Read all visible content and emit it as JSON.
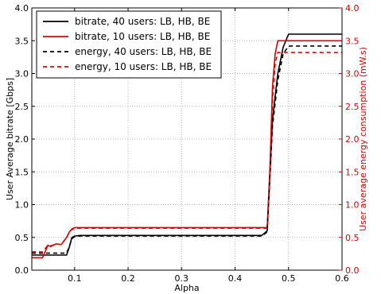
{
  "chart_data": {
    "type": "line",
    "xlabel": "Alpha",
    "ylabel_left": "User Average bitrate [Gbps]",
    "ylabel_right": "User average energy consumption (mW.s)",
    "xlim": [
      0.02,
      0.6
    ],
    "ylim_left": [
      0.0,
      4.0
    ],
    "ylim_right": [
      0.0,
      4.0
    ],
    "x_ticks": [
      "0.1",
      "0.2",
      "0.3",
      "0.4",
      "0.5",
      "0.6"
    ],
    "x_tick_values": [
      0.1,
      0.2,
      0.3,
      0.4,
      0.5,
      0.6
    ],
    "y_ticks_left": [
      "0.0",
      "0.5",
      "1.0",
      "1.5",
      "2.0",
      "2.5",
      "3.0",
      "3.5",
      "4.0"
    ],
    "y_ticks_right": [
      "0.0",
      "0.5",
      "1.0",
      "1.5",
      "2.0",
      "2.5",
      "3.0",
      "3.5",
      "4.0"
    ],
    "y_tick_values": [
      0.0,
      0.5,
      1.0,
      1.5,
      2.0,
      2.5,
      3.0,
      3.5,
      4.0
    ],
    "grid": true,
    "legend_position": "top-left",
    "colors": {
      "black": "#000000",
      "red": "#e00000",
      "grid": "#b0b0b0"
    },
    "series": [
      {
        "name": "bitrate, 40 users: LB, HB, BE",
        "color": "#000000",
        "dash": "solid",
        "axis": "left",
        "x": [
          0.02,
          0.085,
          0.09,
          0.095,
          0.1,
          0.11,
          0.45,
          0.46,
          0.47,
          0.48,
          0.49,
          0.5,
          0.6
        ],
        "y": [
          0.23,
          0.23,
          0.35,
          0.5,
          0.52,
          0.53,
          0.53,
          0.6,
          2.3,
          3.0,
          3.4,
          3.6,
          3.6
        ]
      },
      {
        "name": "bitrate, 10 users: LB, HB, BE",
        "color": "#e00000",
        "dash": "solid",
        "axis": "left",
        "x": [
          0.02,
          0.04,
          0.05,
          0.055,
          0.065,
          0.075,
          0.085,
          0.09,
          0.095,
          0.1,
          0.11,
          0.46,
          0.465,
          0.47,
          0.475,
          0.48,
          0.6
        ],
        "y": [
          0.19,
          0.19,
          0.38,
          0.36,
          0.4,
          0.39,
          0.5,
          0.58,
          0.63,
          0.65,
          0.65,
          0.65,
          1.5,
          2.8,
          3.3,
          3.5,
          3.5
        ]
      },
      {
        "name": "energy, 40 users: LB, HB, BE",
        "color": "#000000",
        "dash": "dashed",
        "axis": "right",
        "x": [
          0.02,
          0.085,
          0.09,
          0.095,
          0.1,
          0.11,
          0.45,
          0.46,
          0.47,
          0.48,
          0.49,
          0.5,
          0.6
        ],
        "y": [
          0.26,
          0.26,
          0.36,
          0.48,
          0.51,
          0.52,
          0.52,
          0.58,
          2.2,
          2.9,
          3.3,
          3.42,
          3.42
        ]
      },
      {
        "name": "energy, 10 users: LB, HB, BE",
        "color": "#e00000",
        "dash": "dashed",
        "axis": "right",
        "x": [
          0.02,
          0.04,
          0.05,
          0.055,
          0.065,
          0.075,
          0.085,
          0.09,
          0.095,
          0.1,
          0.11,
          0.46,
          0.465,
          0.47,
          0.475,
          0.48,
          0.6
        ],
        "y": [
          0.28,
          0.28,
          0.38,
          0.37,
          0.4,
          0.39,
          0.5,
          0.58,
          0.62,
          0.64,
          0.64,
          0.64,
          1.4,
          2.6,
          3.15,
          3.32,
          3.32
        ]
      }
    ]
  }
}
